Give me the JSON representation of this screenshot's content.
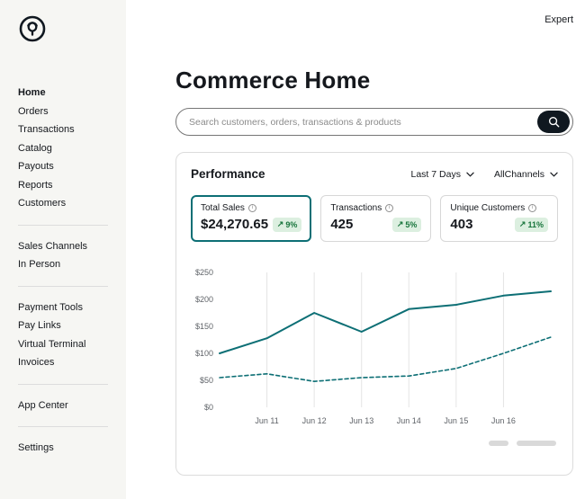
{
  "topbar": {
    "expert_label": "Expert"
  },
  "icons": {
    "trend_up": "↗",
    "info": "i"
  },
  "sidebar": {
    "groups": [
      {
        "items": [
          {
            "label": "Home",
            "active": true
          },
          {
            "label": "Orders"
          },
          {
            "label": "Transactions"
          },
          {
            "label": "Catalog"
          },
          {
            "label": "Payouts"
          },
          {
            "label": "Reports"
          },
          {
            "label": "Customers"
          }
        ]
      },
      {
        "items": [
          {
            "label": "Sales Channels"
          },
          {
            "label": "In Person"
          }
        ]
      },
      {
        "items": [
          {
            "label": "Payment Tools"
          },
          {
            "label": "Pay Links"
          },
          {
            "label": "Virtual Terminal"
          },
          {
            "label": "Invoices"
          }
        ]
      },
      {
        "items": [
          {
            "label": "App Center"
          }
        ]
      },
      {
        "items": [
          {
            "label": "Settings"
          }
        ]
      }
    ]
  },
  "main": {
    "title": "Commerce Home",
    "search": {
      "placeholder": "Search customers, orders, transactions & products"
    }
  },
  "performance": {
    "title": "Performance",
    "filters": [
      {
        "label": "Last 7 Days"
      },
      {
        "label": "AllChannels"
      }
    ],
    "stats": [
      {
        "label": "Total Sales",
        "value": "$24,270.65",
        "delta": "9%",
        "selected": true
      },
      {
        "label": "Transactions",
        "value": "425",
        "delta": "5%",
        "selected": false
      },
      {
        "label": "Unique Customers",
        "value": "403",
        "delta": "11%",
        "selected": false
      }
    ]
  },
  "chart_data": {
    "type": "line",
    "x_labels": [
      "",
      "Jun 11",
      "Jun 12",
      "Jun 13",
      "Jun 14",
      "Jun 15",
      "Jun 16",
      ""
    ],
    "y_ticks": [
      0,
      50,
      100,
      150,
      200,
      250
    ],
    "y_tick_prefix": "$",
    "ylim": [
      0,
      250
    ],
    "grid": "vertical",
    "line_color": "#0d6f75",
    "series": [
      {
        "name": "current-period",
        "style": "solid",
        "values": [
          100,
          128,
          175,
          140,
          182,
          190,
          207,
          215
        ]
      },
      {
        "name": "previous-period",
        "style": "dashed",
        "values": [
          55,
          62,
          48,
          55,
          58,
          72,
          100,
          130
        ]
      }
    ]
  }
}
